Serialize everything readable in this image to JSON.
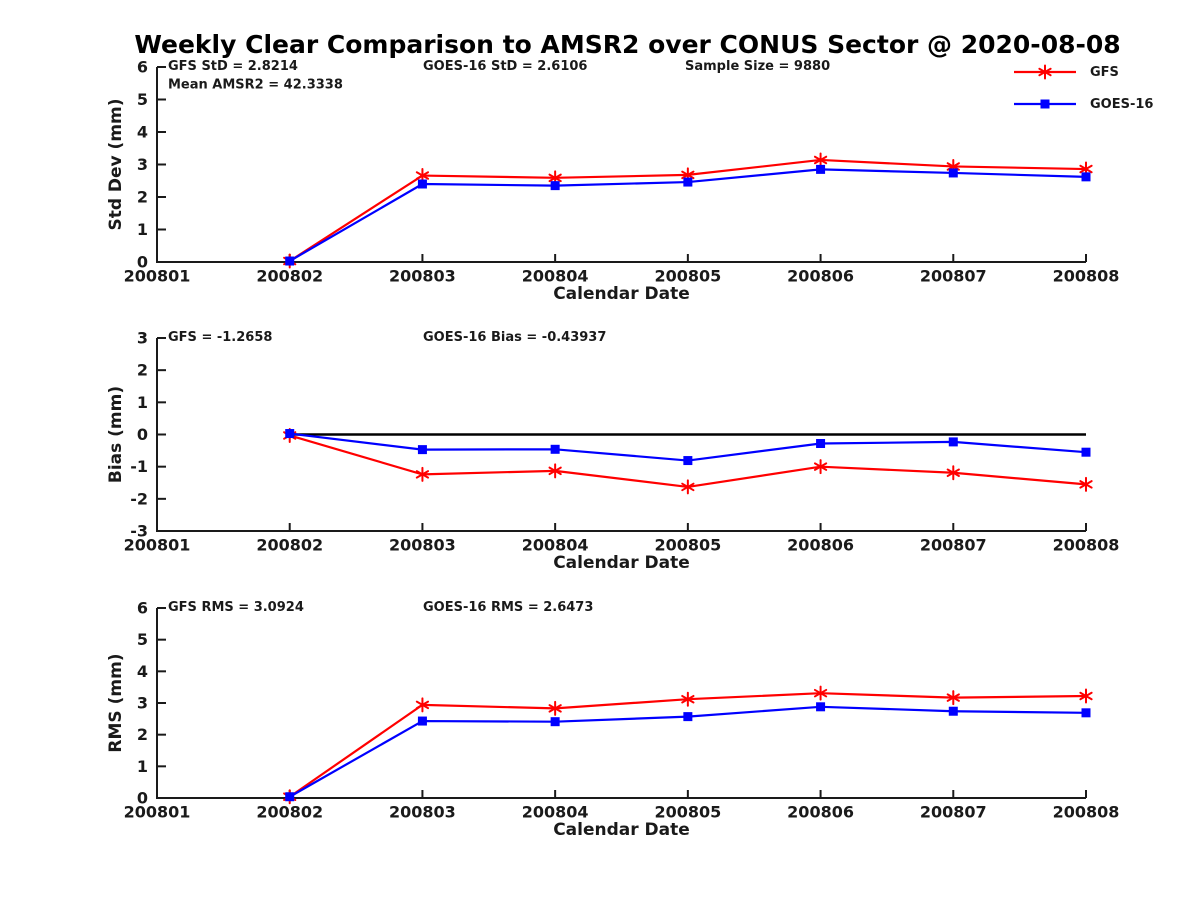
{
  "figure": {
    "title": "Weekly Clear Comparison to AMSR2 over CONUS Sector @ 2020-08-08",
    "background": "#ffffff"
  },
  "legend": {
    "items": [
      {
        "label": "GFS",
        "color": "#ff0000",
        "marker": "asterisk"
      },
      {
        "label": "GOES-16",
        "color": "#0000ff",
        "marker": "square"
      }
    ]
  },
  "chart_data": [
    {
      "id": "std-dev",
      "type": "line",
      "ylabel": "Std Dev (mm)",
      "xlabel": "Calendar Date",
      "ylim": [
        0,
        6
      ],
      "yticks": [
        0,
        1,
        2,
        3,
        4,
        5,
        6
      ],
      "categories": [
        "200801",
        "200802",
        "200803",
        "200804",
        "200805",
        "200806",
        "200807",
        "200808"
      ],
      "series": [
        {
          "name": "GFS",
          "color": "#ff0000",
          "marker": "asterisk",
          "values": [
            null,
            0.03,
            2.66,
            2.59,
            2.68,
            3.14,
            2.94,
            2.86
          ]
        },
        {
          "name": "GOES-16",
          "color": "#0000ff",
          "marker": "square",
          "values": [
            null,
            0.03,
            2.4,
            2.35,
            2.46,
            2.85,
            2.74,
            2.62
          ]
        }
      ],
      "annotations": [
        {
          "text": "GFS StD = 2.8214",
          "col": "left",
          "row": 0
        },
        {
          "text": "Mean AMSR2 = 42.3338",
          "col": "left",
          "row": 1
        },
        {
          "text": "GOES-16 StD = 2.6106",
          "col": "mid",
          "row": 0
        },
        {
          "text": "Sample Size = 9880",
          "col": "right",
          "row": 0
        }
      ],
      "zero_line": false,
      "grid": false,
      "legend_position": "top-right-outside"
    },
    {
      "id": "bias",
      "type": "line",
      "ylabel": "Bias (mm)",
      "xlabel": "Calendar Date",
      "ylim": [
        -3,
        3
      ],
      "yticks": [
        -3,
        -2,
        -1,
        0,
        1,
        2,
        3
      ],
      "categories": [
        "200801",
        "200802",
        "200803",
        "200804",
        "200805",
        "200806",
        "200807",
        "200808"
      ],
      "series": [
        {
          "name": "GFS",
          "color": "#ff0000",
          "marker": "asterisk",
          "values": [
            null,
            -0.03,
            -1.24,
            -1.13,
            -1.63,
            -1.0,
            -1.19,
            -1.55
          ]
        },
        {
          "name": "GOES-16",
          "color": "#0000ff",
          "marker": "square",
          "values": [
            null,
            0.03,
            -0.47,
            -0.46,
            -0.81,
            -0.28,
            -0.23,
            -0.55
          ]
        }
      ],
      "annotations": [
        {
          "text": "GFS = -1.2658",
          "col": "left",
          "row": 0
        },
        {
          "text": "GOES-16 Bias  = -0.43937",
          "col": "mid",
          "row": 0
        }
      ],
      "zero_line": true,
      "grid": false
    },
    {
      "id": "rms",
      "type": "line",
      "ylabel": "RMS (mm)",
      "xlabel": "Calendar Date",
      "ylim": [
        0,
        6
      ],
      "yticks": [
        0,
        1,
        2,
        3,
        4,
        5,
        6
      ],
      "categories": [
        "200801",
        "200802",
        "200803",
        "200804",
        "200805",
        "200806",
        "200807",
        "200808"
      ],
      "series": [
        {
          "name": "GFS",
          "color": "#ff0000",
          "marker": "asterisk",
          "values": [
            null,
            0.04,
            2.94,
            2.83,
            3.12,
            3.31,
            3.17,
            3.22
          ]
        },
        {
          "name": "GOES-16",
          "color": "#0000ff",
          "marker": "square",
          "values": [
            null,
            0.04,
            2.43,
            2.41,
            2.57,
            2.88,
            2.74,
            2.69
          ]
        }
      ],
      "annotations": [
        {
          "text": "GFS RMS = 3.0924",
          "col": "left",
          "row": 0
        },
        {
          "text": "GOES-16 RMS = 2.6473",
          "col": "mid",
          "row": 0
        }
      ],
      "zero_line": false,
      "grid": false
    }
  ]
}
